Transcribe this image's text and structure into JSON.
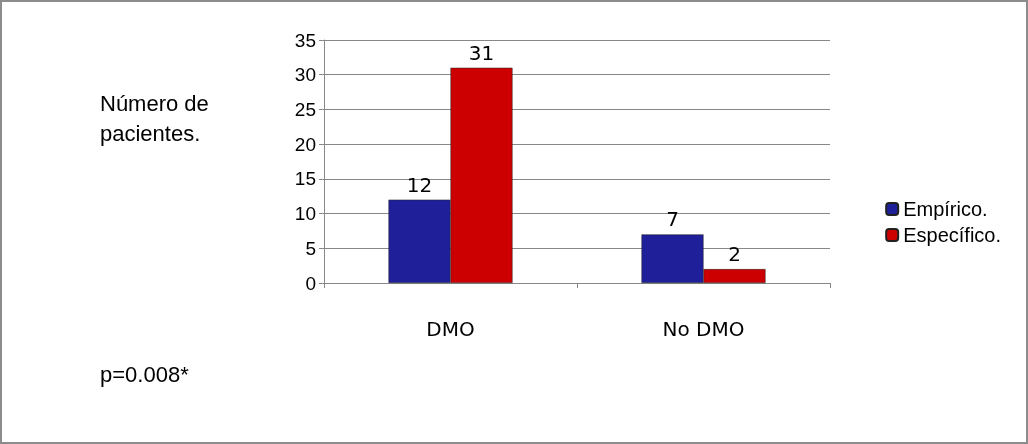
{
  "chart_data": {
    "type": "bar",
    "ylabel": "Número de\npacientes.",
    "categories": [
      "DMO",
      "No DMO"
    ],
    "series": [
      {
        "name": "Empírico.",
        "color": "#1f1f99",
        "values": [
          12,
          7
        ]
      },
      {
        "name": "Específico.",
        "color": "#cc0000",
        "values": [
          31,
          2
        ]
      }
    ],
    "ylim": [
      0,
      35
    ],
    "yticks": [
      0,
      5,
      10,
      15,
      20,
      25,
      30,
      35
    ],
    "grid": "y",
    "legend": "right",
    "data_labels": true,
    "annotations": [
      "p=0.008*"
    ]
  }
}
